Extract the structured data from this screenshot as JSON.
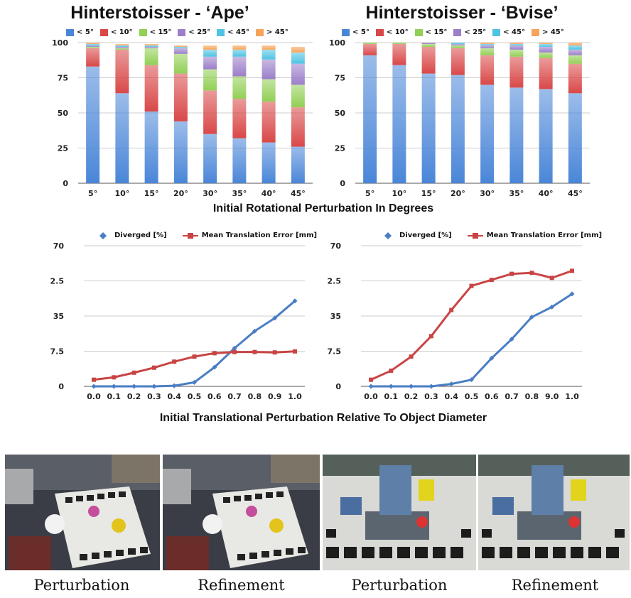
{
  "chart_data": [
    {
      "type": "bar",
      "stacked": true,
      "title": "Hinterstoisser - ‘Ape’",
      "categories": [
        "5°",
        "10°",
        "15°",
        "20°",
        "30°",
        "35°",
        "40°",
        "45°"
      ],
      "ylim": [
        0,
        100
      ],
      "yticks": [
        "0",
        "25",
        "50",
        "75",
        "100"
      ],
      "legend": "top",
      "series": [
        {
          "name": "< 5°",
          "color": "#4a86d8",
          "values": [
            83,
            64,
            51,
            44,
            35,
            32,
            29,
            26
          ]
        },
        {
          "name": "< 10°",
          "color": "#d94848",
          "values": [
            13,
            31,
            33,
            34,
            31,
            28,
            29,
            28
          ]
        },
        {
          "name": "< 15°",
          "color": "#92cf55",
          "values": [
            1,
            1,
            12,
            14,
            15,
            16,
            16,
            16
          ]
        },
        {
          "name": "< 25°",
          "color": "#9b7fc9",
          "values": [
            1,
            1,
            1,
            4,
            9,
            14,
            14,
            15
          ]
        },
        {
          "name": "< 45°",
          "color": "#4fc3e2",
          "values": [
            1,
            1,
            1,
            1,
            5,
            5,
            7,
            8
          ]
        },
        {
          "name": "> 45°",
          "color": "#f7a45a",
          "values": [
            1,
            1,
            1,
            1,
            3,
            3,
            3,
            4
          ]
        }
      ]
    },
    {
      "type": "bar",
      "stacked": true,
      "title": "Hinterstoisser - ‘Bvise’",
      "categories": [
        "5°",
        "10°",
        "15°",
        "20°",
        "30°",
        "35°",
        "40°",
        "45°"
      ],
      "ylim": [
        0,
        100
      ],
      "yticks": [
        "0",
        "25",
        "50",
        "75",
        "100"
      ],
      "legend": "top",
      "series": [
        {
          "name": "< 5°",
          "color": "#4a86d8",
          "values": [
            91,
            84,
            78,
            77,
            70,
            68,
            67,
            64
          ]
        },
        {
          "name": "< 10°",
          "color": "#d94848",
          "values": [
            8,
            15,
            19,
            19,
            21,
            22,
            22,
            21
          ]
        },
        {
          "name": "< 15°",
          "color": "#92cf55",
          "values": [
            1,
            1,
            2,
            2,
            5,
            5,
            4,
            6
          ]
        },
        {
          "name": "< 25°",
          "color": "#9b7fc9",
          "values": [
            0,
            0,
            1,
            1,
            2,
            3,
            4,
            4
          ]
        },
        {
          "name": "< 45°",
          "color": "#4fc3e2",
          "values": [
            0,
            0,
            0,
            1,
            1,
            1,
            2,
            3
          ]
        },
        {
          "name": "> 45°",
          "color": "#f7a45a",
          "values": [
            0,
            0,
            0,
            0,
            1,
            1,
            1,
            2
          ]
        }
      ]
    },
    {
      "type": "line",
      "categories": [
        "0.0",
        "0.1",
        "0.2",
        "0.3",
        "0.4",
        "0.5",
        "0.6",
        "0.7",
        "0.8",
        "0.9",
        "1.0"
      ],
      "ylim": [
        0,
        70
      ],
      "yticks": [
        "0",
        "17.5",
        "35",
        "52.5",
        "70"
      ],
      "legend": "top",
      "series": [
        {
          "name": "Diverged [%]",
          "color": "#4a7ec3",
          "marker": "diamond",
          "values": [
            0,
            0,
            0,
            0,
            0.3,
            2,
            9.5,
            19,
            27.5,
            34,
            42.5
          ]
        },
        {
          "name": "Mean Translation Error [mm]",
          "color": "#c94444",
          "marker": "square",
          "values": [
            3.3,
            4.5,
            6.8,
            9.3,
            12.3,
            14.8,
            16.5,
            17.1,
            17.1,
            16.9,
            17.4
          ]
        }
      ]
    },
    {
      "type": "line",
      "categories": [
        "0.0",
        "0.1",
        "0.2",
        "0.3",
        "0.4",
        "0.5",
        "0.6",
        "0.7",
        "0.8",
        "9.0",
        "1.0"
      ],
      "ylim": [
        0,
        70
      ],
      "yticks": [
        "0",
        "17.5",
        "35",
        "52.5",
        "70"
      ],
      "legend": "top",
      "series": [
        {
          "name": "Diverged [%]",
          "color": "#4a7ec3",
          "marker": "diamond",
          "values": [
            0,
            0,
            0,
            0,
            1.2,
            3.3,
            14,
            23.5,
            34.5,
            39.5,
            46
          ]
        },
        {
          "name": "Mean Translation Error [mm]",
          "color": "#c94444",
          "marker": "square",
          "values": [
            3.3,
            7.8,
            14.8,
            25,
            38,
            50,
            53,
            56,
            56.5,
            54,
            57.5
          ]
        }
      ]
    }
  ],
  "captions": {
    "rot_xlabel": "Initial Rotational Perturbation In Degrees",
    "trans_xlabel": "Initial Translational Perturbation Relative To Object Diameter",
    "photo_labels": [
      "Perturbation",
      "Refinement",
      "Perturbation",
      "Refinement"
    ]
  }
}
